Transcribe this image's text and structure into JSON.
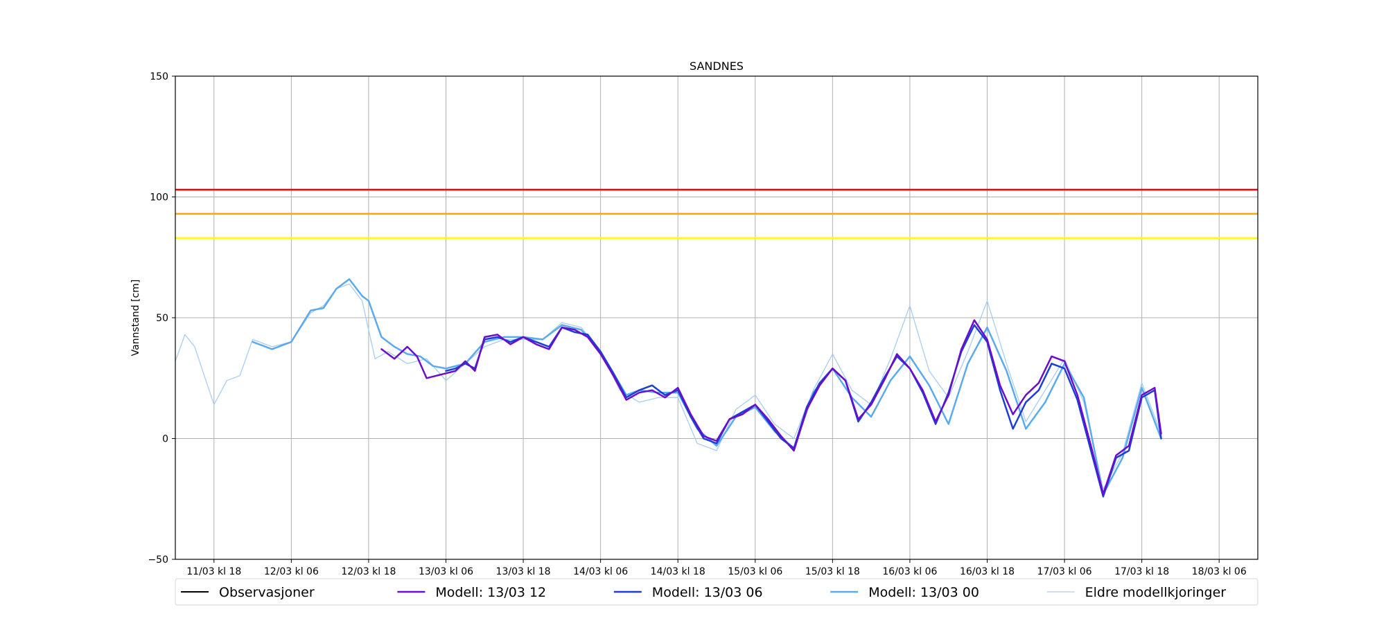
{
  "chart_data": {
    "type": "line",
    "title": "SANDNES",
    "xlabel": "",
    "ylabel": "Vannstand [cm]",
    "ylim": [
      -50,
      150
    ],
    "xlim": [
      "2023-03-11T12:00",
      "2023-03-18T12:00"
    ],
    "yticks": [
      -50,
      0,
      50,
      100,
      150
    ],
    "xticks": [
      {
        "x": "2023-03-11T18:00",
        "label": "11/03 kl 18"
      },
      {
        "x": "2023-03-12T06:00",
        "label": "12/03 kl 06"
      },
      {
        "x": "2023-03-12T18:00",
        "label": "12/03 kl 18"
      },
      {
        "x": "2023-03-13T06:00",
        "label": "13/03 kl 06"
      },
      {
        "x": "2023-03-13T18:00",
        "label": "13/03 kl 18"
      },
      {
        "x": "2023-03-14T06:00",
        "label": "14/03 kl 06"
      },
      {
        "x": "2023-03-14T18:00",
        "label": "14/03 kl 18"
      },
      {
        "x": "2023-03-15T06:00",
        "label": "15/03 kl 06"
      },
      {
        "x": "2023-03-15T18:00",
        "label": "15/03 kl 18"
      },
      {
        "x": "2023-03-16T06:00",
        "label": "16/03 kl 06"
      },
      {
        "x": "2023-03-16T18:00",
        "label": "16/03 kl 18"
      },
      {
        "x": "2023-03-17T06:00",
        "label": "17/03 kl 06"
      },
      {
        "x": "2023-03-17T18:00",
        "label": "17/03 kl 18"
      },
      {
        "x": "2023-03-18T06:00",
        "label": "18/03 kl 06"
      }
    ],
    "grid": true,
    "legend_position": "bottom",
    "thresholds": [
      {
        "y": 103,
        "color": "#ff0000"
      },
      {
        "y": 93,
        "color": "#ffa500"
      },
      {
        "y": 83,
        "color": "#ffff00"
      }
    ],
    "series": [
      {
        "name": "Observasjoner",
        "color": "#000000",
        "width": 2,
        "x": [],
        "y": []
      },
      {
        "name": "Modell: 13/03 12",
        "color": "#6a0dcc",
        "width": 2.5,
        "x": [
          "2023-03-12T20:00",
          "2023-03-12T22:00",
          "2023-03-13T00:00",
          "2023-03-13T01:30",
          "2023-03-13T03:00",
          "2023-03-13T06:00",
          "2023-03-13T07:30",
          "2023-03-13T09:00",
          "2023-03-13T10:30",
          "2023-03-13T12:00",
          "2023-03-13T14:00",
          "2023-03-13T16:00",
          "2023-03-13T18:00",
          "2023-03-13T20:00",
          "2023-03-13T22:00",
          "2023-03-14T00:00",
          "2023-03-14T02:00",
          "2023-03-14T04:00",
          "2023-03-14T06:00",
          "2023-03-14T08:00",
          "2023-03-14T10:00",
          "2023-03-14T12:00",
          "2023-03-14T14:00",
          "2023-03-14T16:00",
          "2023-03-14T18:00",
          "2023-03-14T20:00",
          "2023-03-14T22:00",
          "2023-03-15T00:00",
          "2023-03-15T02:00",
          "2023-03-15T04:00",
          "2023-03-15T06:00",
          "2023-03-15T08:00",
          "2023-03-15T10:00",
          "2023-03-15T12:00",
          "2023-03-15T14:00",
          "2023-03-15T16:00",
          "2023-03-15T18:00",
          "2023-03-15T20:00",
          "2023-03-15T22:00",
          "2023-03-16T00:00",
          "2023-03-16T02:00",
          "2023-03-16T04:00",
          "2023-03-16T06:00",
          "2023-03-16T08:00",
          "2023-03-16T10:00",
          "2023-03-16T12:00",
          "2023-03-16T14:00",
          "2023-03-16T16:00",
          "2023-03-16T18:00",
          "2023-03-16T20:00",
          "2023-03-16T22:00",
          "2023-03-17T00:00",
          "2023-03-17T02:00",
          "2023-03-17T04:00",
          "2023-03-17T06:00",
          "2023-03-17T08:00",
          "2023-03-17T10:00",
          "2023-03-17T12:00",
          "2023-03-17T14:00",
          "2023-03-17T16:00",
          "2023-03-17T18:00",
          "2023-03-17T20:00",
          "2023-03-17T21:00"
        ],
        "y": [
          37,
          33,
          38,
          34,
          25,
          27,
          28,
          32,
          28,
          42,
          43,
          39,
          42,
          39,
          37,
          46,
          45,
          42,
          35,
          26,
          16,
          19,
          20,
          17,
          21,
          10,
          1,
          -1,
          8,
          10,
          14,
          8,
          1,
          -5,
          12,
          22,
          29,
          24,
          8,
          14,
          24,
          35,
          29,
          20,
          7,
          18,
          37,
          49,
          41,
          22,
          10,
          18,
          23,
          34,
          32,
          18,
          -2,
          -23,
          -7,
          -3,
          18,
          21,
          2
        ]
      },
      {
        "name": "Modell: 13/03 06",
        "color": "#1b3fd6",
        "width": 2.5,
        "x": [
          "2023-03-13T06:00",
          "2023-03-13T07:30",
          "2023-03-13T09:00",
          "2023-03-13T10:30",
          "2023-03-13T12:00",
          "2023-03-13T14:00",
          "2023-03-13T16:00",
          "2023-03-13T18:00",
          "2023-03-13T20:00",
          "2023-03-13T22:00",
          "2023-03-14T00:00",
          "2023-03-14T02:00",
          "2023-03-14T04:00",
          "2023-03-14T06:00",
          "2023-03-14T08:00",
          "2023-03-14T10:00",
          "2023-03-14T12:00",
          "2023-03-14T14:00",
          "2023-03-14T16:00",
          "2023-03-14T18:00",
          "2023-03-14T20:00",
          "2023-03-14T22:00",
          "2023-03-15T00:00",
          "2023-03-15T02:00",
          "2023-03-15T04:00",
          "2023-03-15T06:00",
          "2023-03-15T08:00",
          "2023-03-15T10:00",
          "2023-03-15T12:00",
          "2023-03-15T14:00",
          "2023-03-15T16:00",
          "2023-03-15T18:00",
          "2023-03-15T20:00",
          "2023-03-15T22:00",
          "2023-03-16T00:00",
          "2023-03-16T02:00",
          "2023-03-16T04:00",
          "2023-03-16T06:00",
          "2023-03-16T08:00",
          "2023-03-16T10:00",
          "2023-03-16T12:00",
          "2023-03-16T14:00",
          "2023-03-16T16:00",
          "2023-03-16T18:00",
          "2023-03-16T20:00",
          "2023-03-16T22:00",
          "2023-03-17T00:00",
          "2023-03-17T02:00",
          "2023-03-17T04:00",
          "2023-03-17T06:00",
          "2023-03-17T08:00",
          "2023-03-17T10:00",
          "2023-03-17T12:00",
          "2023-03-17T14:00",
          "2023-03-17T16:00",
          "2023-03-17T18:00",
          "2023-03-17T20:00",
          "2023-03-17T21:00"
        ],
        "y": [
          28,
          29,
          31,
          29,
          41,
          42,
          40,
          42,
          40,
          38,
          46,
          44,
          43,
          36,
          27,
          17,
          20,
          22,
          18,
          20,
          9,
          0,
          -2,
          8,
          11,
          14,
          7,
          0,
          -4,
          13,
          23,
          29,
          24,
          7,
          15,
          25,
          34,
          29,
          19,
          6,
          19,
          36,
          47,
          40,
          20,
          4,
          15,
          20,
          31,
          29,
          16,
          -4,
          -24,
          -8,
          -5,
          17,
          20,
          0
        ]
      },
      {
        "name": "Modell: 13/03 00",
        "color": "#5aaaf0",
        "width": 2.5,
        "x": [
          "2023-03-12T00:00",
          "2023-03-12T03:00",
          "2023-03-12T06:00",
          "2023-03-12T09:00",
          "2023-03-12T11:00",
          "2023-03-12T13:00",
          "2023-03-12T15:00",
          "2023-03-12T17:00",
          "2023-03-12T18:00",
          "2023-03-12T20:00",
          "2023-03-12T22:00",
          "2023-03-13T00:00",
          "2023-03-13T02:00",
          "2023-03-13T04:00",
          "2023-03-13T06:00",
          "2023-03-13T09:00",
          "2023-03-13T12:00",
          "2023-03-13T15:00",
          "2023-03-13T18:00",
          "2023-03-13T21:00",
          "2023-03-14T00:00",
          "2023-03-14T03:00",
          "2023-03-14T06:00",
          "2023-03-14T08:00",
          "2023-03-14T10:00",
          "2023-03-14T12:00",
          "2023-03-14T15:00",
          "2023-03-14T18:00",
          "2023-03-14T21:00",
          "2023-03-15T00:00",
          "2023-03-15T03:00",
          "2023-03-15T06:00",
          "2023-03-15T09:00",
          "2023-03-15T12:00",
          "2023-03-15T15:00",
          "2023-03-15T18:00",
          "2023-03-15T21:00",
          "2023-03-16T00:00",
          "2023-03-16T03:00",
          "2023-03-16T06:00",
          "2023-03-16T09:00",
          "2023-03-16T12:00",
          "2023-03-16T15:00",
          "2023-03-16T18:00",
          "2023-03-16T21:00",
          "2023-03-17T00:00",
          "2023-03-17T03:00",
          "2023-03-17T06:00",
          "2023-03-17T09:00",
          "2023-03-17T12:00",
          "2023-03-17T15:00",
          "2023-03-17T18:00",
          "2023-03-17T21:00"
        ],
        "y": [
          40,
          37,
          40,
          53,
          54,
          62,
          66,
          59,
          57,
          42,
          38,
          35,
          34,
          30,
          29,
          31,
          40,
          42,
          42,
          41,
          47,
          45,
          36,
          27,
          18,
          20,
          19,
          19,
          4,
          -3,
          9,
          13,
          3,
          -4,
          19,
          29,
          17,
          9,
          24,
          34,
          22,
          6,
          31,
          46,
          28,
          4,
          15,
          31,
          17,
          -23,
          -8,
          21,
          0
        ]
      },
      {
        "name": "Eldre modellkjoringer",
        "color": "#a8ccf2",
        "width": 1.3,
        "x": [
          "2023-03-11T12:00",
          "2023-03-11T13:30",
          "2023-03-11T15:00",
          "2023-03-11T16:30",
          "2023-03-11T18:00",
          "2023-03-11T20:00",
          "2023-03-11T22:00",
          "2023-03-12T00:00",
          "2023-03-12T03:00",
          "2023-03-12T06:00",
          "2023-03-12T09:00",
          "2023-03-12T11:00",
          "2023-03-12T13:00",
          "2023-03-12T15:00",
          "2023-03-12T17:00",
          "2023-03-12T19:00",
          "2023-03-12T21:00",
          "2023-03-13T00:00",
          "2023-03-13T03:00",
          "2023-03-13T06:00",
          "2023-03-13T09:00",
          "2023-03-13T12:00",
          "2023-03-13T15:00",
          "2023-03-13T18:00",
          "2023-03-13T21:00",
          "2023-03-14T00:00",
          "2023-03-14T03:00",
          "2023-03-14T06:00",
          "2023-03-14T09:00",
          "2023-03-14T12:00",
          "2023-03-14T15:00",
          "2023-03-14T18:00",
          "2023-03-14T21:00",
          "2023-03-15T00:00",
          "2023-03-15T03:00",
          "2023-03-15T06:00",
          "2023-03-15T09:00",
          "2023-03-15T12:00",
          "2023-03-15T15:00",
          "2023-03-15T18:00",
          "2023-03-15T21:00",
          "2023-03-16T00:00",
          "2023-03-16T03:00",
          "2023-03-16T06:00",
          "2023-03-16T09:00",
          "2023-03-16T12:00",
          "2023-03-16T15:00",
          "2023-03-16T18:00",
          "2023-03-16T21:00",
          "2023-03-17T00:00",
          "2023-03-17T03:00",
          "2023-03-17T06:00",
          "2023-03-17T09:00",
          "2023-03-17T12:00",
          "2023-03-17T15:00",
          "2023-03-17T18:00",
          "2023-03-17T21:00"
        ],
        "y": [
          32,
          43,
          38,
          26,
          14,
          24,
          26,
          41,
          38,
          40,
          52,
          55,
          62,
          64,
          57,
          33,
          36,
          31,
          33,
          24,
          31,
          38,
          41,
          41,
          41,
          48,
          46,
          36,
          20,
          15,
          17,
          17,
          -2,
          -5,
          12,
          18,
          6,
          0,
          20,
          35,
          20,
          14,
          33,
          55,
          28,
          17,
          36,
          57,
          31,
          7,
          20,
          33,
          15,
          -21,
          -6,
          23,
          2
        ]
      }
    ]
  }
}
